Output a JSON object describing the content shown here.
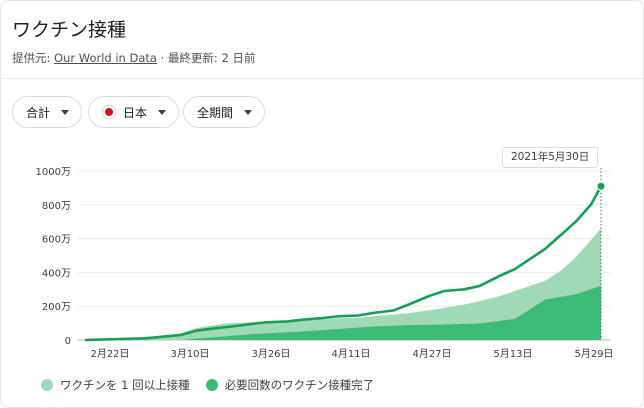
{
  "header": {
    "title": "ワクチン接種",
    "source_prefix": "提供元:",
    "source_link": "Our World in Data",
    "source_suffix": "· 最終更新: 2 日前"
  },
  "filters": {
    "metric": "合計",
    "country": "日本",
    "period": "全期間"
  },
  "tooltip": {
    "date": "2021年5月30日"
  },
  "legend": {
    "one_dose": "ワクチンを 1 回以上接種",
    "fully": "必要回数のワクチン接種完了"
  },
  "colors": {
    "one_dose_fill": "#9fd9b5",
    "fully_fill": "#3cba76",
    "total_line": "#15a054",
    "brand_accent": "#d3122e"
  },
  "chart_data": {
    "type": "area",
    "xlabel": "",
    "ylabel": "",
    "x_tick_labels": [
      "2月22日",
      "3月10日",
      "3月26日",
      "4月11日",
      "4月27日",
      "5月13日",
      "5月29日"
    ],
    "y_tick_labels": [
      "0",
      "200万",
      "400万",
      "600万",
      "800万",
      "1000万"
    ],
    "y_ticks": [
      0,
      2000000,
      4000000,
      6000000,
      8000000,
      10000000
    ],
    "ylim": [
      0,
      10000000
    ],
    "x_range": [
      "2021-02-17",
      "2021-05-30"
    ],
    "grid": true,
    "legend_position": "bottom",
    "series": [
      {
        "name": "ワクチンを 1 回以上接種",
        "x": [
          "2021-02-17",
          "2021-03-01",
          "2021-03-08",
          "2021-03-11",
          "2021-03-15",
          "2021-03-18",
          "2021-03-22",
          "2021-03-25",
          "2021-03-29",
          "2021-04-01",
          "2021-04-05",
          "2021-04-08",
          "2021-04-12",
          "2021-04-15",
          "2021-04-19",
          "2021-04-22",
          "2021-04-26",
          "2021-04-29",
          "2021-05-03",
          "2021-05-06",
          "2021-05-10",
          "2021-05-13",
          "2021-05-16",
          "2021-05-19",
          "2021-05-22",
          "2021-05-25",
          "2021-05-28",
          "2021-05-30"
        ],
        "values": [
          0,
          100000,
          400000,
          700000,
          900000,
          1000000,
          1050000,
          1100000,
          1130000,
          1180000,
          1220000,
          1280000,
          1320000,
          1400000,
          1500000,
          1600000,
          1750000,
          1900000,
          2100000,
          2300000,
          2600000,
          2900000,
          3200000,
          3500000,
          4100000,
          4900000,
          5900000,
          6600000
        ]
      },
      {
        "name": "必要回数のワクチン接種完了",
        "x": [
          "2021-02-17",
          "2021-03-08",
          "2021-03-12",
          "2021-03-22",
          "2021-04-01",
          "2021-04-08",
          "2021-04-15",
          "2021-04-22",
          "2021-04-29",
          "2021-05-06",
          "2021-05-13",
          "2021-05-19",
          "2021-05-25",
          "2021-05-30"
        ],
        "values": [
          0,
          0,
          100000,
          350000,
          500000,
          650000,
          800000,
          880000,
          920000,
          980000,
          1250000,
          2400000,
          2700000,
          3200000
        ]
      },
      {
        "name": "total",
        "x": [
          "2021-02-17",
          "2021-03-01",
          "2021-03-08",
          "2021-03-11",
          "2021-03-15",
          "2021-03-18",
          "2021-03-22",
          "2021-03-25",
          "2021-03-29",
          "2021-04-01",
          "2021-04-05",
          "2021-04-08",
          "2021-04-12",
          "2021-04-15",
          "2021-04-19",
          "2021-04-22",
          "2021-04-26",
          "2021-04-29",
          "2021-05-03",
          "2021-05-06",
          "2021-05-10",
          "2021-05-13",
          "2021-05-16",
          "2021-05-19",
          "2021-05-22",
          "2021-05-25",
          "2021-05-28",
          "2021-05-30"
        ],
        "values": [
          0,
          100000,
          300000,
          550000,
          700000,
          800000,
          950000,
          1050000,
          1100000,
          1200000,
          1300000,
          1400000,
          1450000,
          1600000,
          1750000,
          2100000,
          2600000,
          2900000,
          3000000,
          3200000,
          3800000,
          4200000,
          4800000,
          5400000,
          6200000,
          7000000,
          8000000,
          9100000
        ]
      }
    ]
  }
}
